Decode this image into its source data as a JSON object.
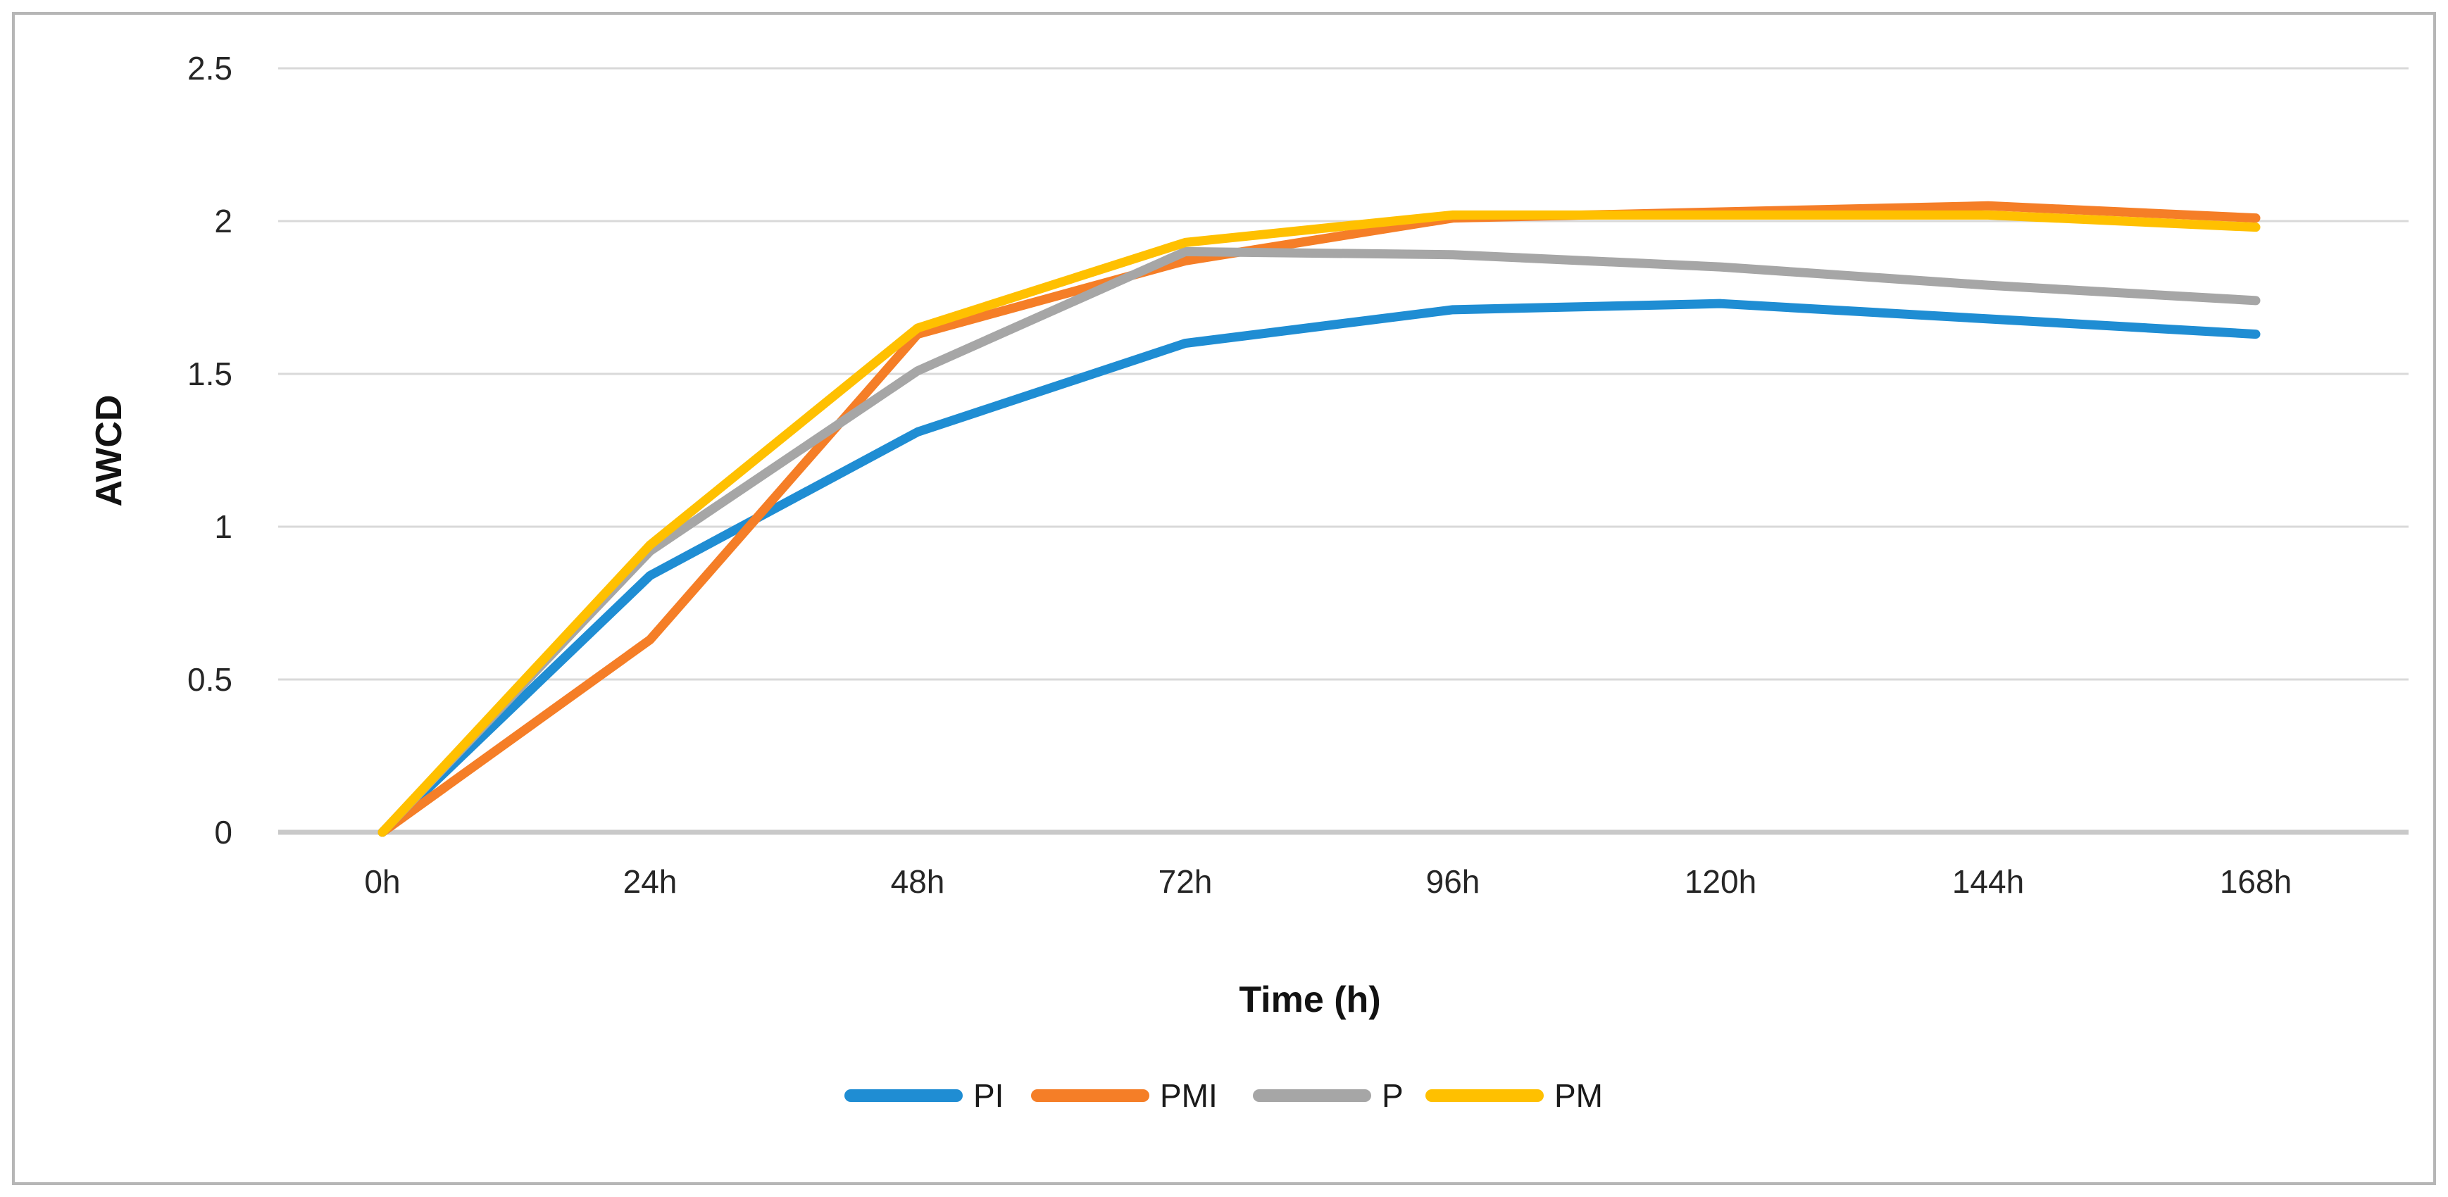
{
  "chart_data": {
    "type": "line",
    "title": "",
    "xlabel": "Time (h)",
    "ylabel": "AWCD",
    "categories": [
      "0h",
      "24h",
      "48h",
      "72h",
      "96h",
      "120h",
      "144h",
      "168h"
    ],
    "series": [
      {
        "name": "PI",
        "color": "#1f8dd3",
        "values": [
          0,
          0.84,
          1.31,
          1.6,
          1.71,
          1.73,
          1.68,
          1.63
        ]
      },
      {
        "name": "PMI",
        "color": "#f57e27",
        "values": [
          0,
          0.63,
          1.63,
          1.87,
          2.01,
          2.03,
          2.05,
          2.01
        ]
      },
      {
        "name": "P",
        "color": "#a6a6a6",
        "values": [
          0,
          0.92,
          1.51,
          1.9,
          1.89,
          1.85,
          1.79,
          1.74
        ]
      },
      {
        "name": "PM",
        "color": "#ffc000",
        "values": [
          0,
          0.94,
          1.65,
          1.93,
          2.02,
          2.02,
          2.02,
          1.98
        ]
      }
    ],
    "ylim": [
      0,
      2.5
    ],
    "yticks": [
      {
        "value": 0,
        "label": "0"
      },
      {
        "value": 0.5,
        "label": "0.5"
      },
      {
        "value": 1,
        "label": "1"
      },
      {
        "value": 1.5,
        "label": "1.5"
      },
      {
        "value": 2,
        "label": "2"
      },
      {
        "value": 2.5,
        "label": "2.5"
      }
    ],
    "grid": "horizontal-only",
    "legend_position": "bottom"
  }
}
